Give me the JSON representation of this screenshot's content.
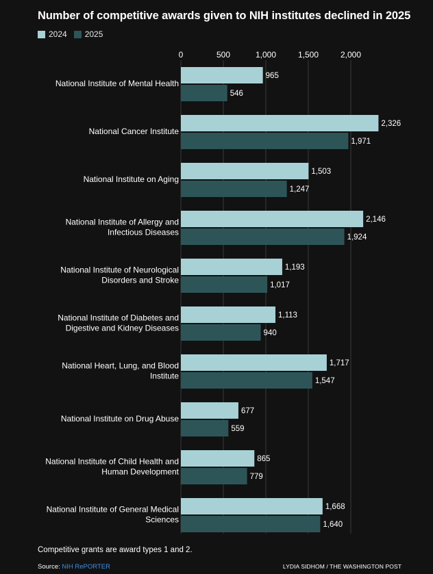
{
  "colors": {
    "bg": "#121212",
    "series2024": "#a8d1d6",
    "series2025": "#2d5558",
    "grid": "#3a3a3a",
    "link": "#3f8fe0"
  },
  "chart_data": {
    "type": "bar",
    "orientation": "horizontal",
    "title": "Number of competitive awards given to NIH institutes declined in 2025",
    "xlabel": "",
    "ylabel": "",
    "xlim": [
      0,
      2300
    ],
    "ticks": [
      0,
      500,
      1000,
      1500,
      2000
    ],
    "tick_labels": [
      "0",
      "500",
      "1,000",
      "1,500",
      "2,000"
    ],
    "legend_position": "top-left",
    "categories": [
      [
        "National Institute of Mental Health"
      ],
      [
        "National Cancer Institute"
      ],
      [
        "National Institute on Aging"
      ],
      [
        "National Institute of Allergy and",
        "Infectious Diseases"
      ],
      [
        "National Institute of Neurological",
        "Disorders and Stroke"
      ],
      [
        "National Institute of Diabetes and",
        "Digestive and Kidney Diseases"
      ],
      [
        "National Heart, Lung, and Blood",
        "Institute"
      ],
      [
        "National Institute on Drug Abuse"
      ],
      [
        "National Institute of Child Health and",
        "Human Development"
      ],
      [
        "National Institute of General Medical",
        "Sciences"
      ]
    ],
    "series": [
      {
        "name": "2024",
        "values": [
          965,
          2326,
          1503,
          2146,
          1193,
          1113,
          1717,
          677,
          865,
          1668
        ],
        "labels": [
          "965",
          "2,326",
          "1,503",
          "2,146",
          "1,193",
          "1,113",
          "1,717",
          "677",
          "865",
          "1,668"
        ]
      },
      {
        "name": "2025",
        "values": [
          546,
          1971,
          1247,
          1924,
          1017,
          940,
          1547,
          559,
          779,
          1640
        ],
        "labels": [
          "546",
          "1,971",
          "1,247",
          "1,924",
          "1,017",
          "940",
          "1,547",
          "559",
          "779",
          "1,640"
        ]
      }
    ]
  },
  "footer": {
    "note": "Competitive grants are award types 1 and 2.",
    "source_label": "Source: ",
    "source_link": "NIH RePORTER",
    "credit": "LYDIA SIDHOM / THE WASHINGTON POST"
  }
}
